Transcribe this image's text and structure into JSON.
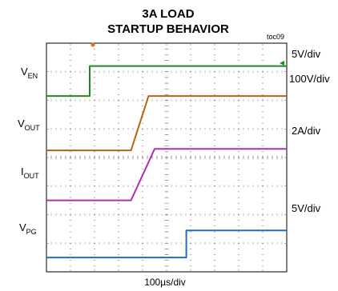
{
  "chart_data": {
    "type": "line",
    "title_line1": "3A LOAD",
    "title_line2": "STARTUP BEHAVIOR",
    "figure_id": "toc09",
    "xlabel": "100µs/div",
    "x_divisions": 10,
    "y_divisions": 8,
    "grid": true,
    "series": [
      {
        "name": "EN",
        "label_main": "V",
        "label_sub": "EN",
        "scale": "5V/div",
        "color": "#1f8a1f",
        "x": [
          0,
          1.8,
          1.8,
          10
        ],
        "y": [
          6.15,
          6.15,
          7.2,
          7.2
        ]
      },
      {
        "name": "OUT",
        "label_main": "V",
        "label_sub": "OUT",
        "scale": "100V/div",
        "color": "#b8640f",
        "x": [
          0,
          3.52,
          4.25,
          10
        ],
        "y": [
          4.25,
          4.25,
          6.15,
          6.15
        ]
      },
      {
        "name": "OUT",
        "label_main": "I",
        "label_sub": "OUT",
        "scale": "2A/div",
        "color": "#b22fb2",
        "x": [
          0,
          3.52,
          4.5,
          10
        ],
        "y": [
          2.5,
          2.5,
          4.3,
          4.3
        ]
      },
      {
        "name": "PG",
        "label_main": "V",
        "label_sub": "PG",
        "scale": "5V/div",
        "color": "#1f6fc4",
        "x": [
          0,
          5.82,
          5.82,
          10
        ],
        "y": [
          0.5,
          0.5,
          1.45,
          1.45
        ]
      }
    ]
  }
}
